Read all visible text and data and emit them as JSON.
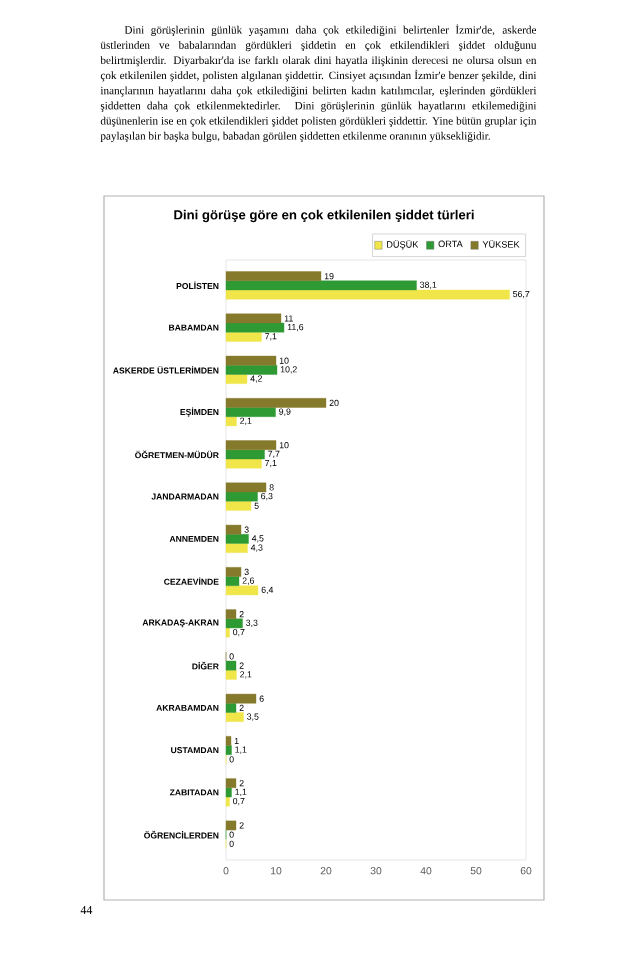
{
  "chart_data": {
    "type": "bar",
    "orientation": "horizontal",
    "title": "Dini görüşe göre en çok etkilenilen şiddet türleri",
    "categories": [
      "POLİSTEN",
      "BABAMDAN",
      "ASKERDE ÜSTLERİMDEN",
      "EŞİMDEN",
      "ÖĞRETMEN-MÜDÜR",
      "JANDARMADAN",
      "ANNEMDEN",
      "CEZAEVİNDE",
      "ARKADAŞ-AKRAN",
      "DİĞER",
      "AKRABAMDAN",
      "USTAMDAN",
      "ZABITADAN",
      "ÖĞRENCİLERDEN"
    ],
    "series": [
      {
        "name": "DÜŞÜK",
        "color": "#f0e64a",
        "values": [
          56.7,
          7.1,
          4.2,
          2.1,
          7.1,
          5,
          4.3,
          6.4,
          0.7,
          2.1,
          3.5,
          0,
          0.7,
          0
        ],
        "value_labels": [
          "56,7",
          "7,1",
          "4,2",
          "2,1",
          "7,1",
          "5",
          "4,3",
          "6,4",
          "0,7",
          "2,1",
          "3,5",
          "0",
          "0,7",
          "0"
        ]
      },
      {
        "name": "ORTA",
        "color": "#2e9a34",
        "values": [
          38.1,
          11.6,
          10.2,
          9.9,
          7.7,
          6.3,
          4.5,
          2.6,
          3.3,
          2,
          2,
          1.1,
          1.1,
          0
        ],
        "value_labels": [
          "38,1",
          "11,6",
          "10,2",
          "9,9",
          "7,7",
          "6,3",
          "4,5",
          "2,6",
          "3,3",
          "2",
          "2",
          "1,1",
          "1,1",
          "0"
        ]
      },
      {
        "name": "YÜKSEK",
        "color": "#857a2c",
        "values": [
          19,
          11,
          10,
          20,
          10,
          8,
          3,
          3,
          2,
          0,
          6,
          1,
          2,
          2
        ],
        "value_labels": [
          "19",
          "11",
          "10",
          "20",
          "10",
          "8",
          "3",
          "3",
          "2",
          "0",
          "6",
          "1",
          "2",
          "2"
        ]
      }
    ],
    "xlim": [
      0,
      60
    ],
    "xticks": [
      0,
      10,
      20,
      30,
      40,
      50,
      60
    ],
    "legend": "top right",
    "grid": false,
    "annotations": [
      "Dini görüşlerinin günlük yaşamını daha çok etkilediğini belirtenler İzmir'de, askerde üstlerinden ve babalarından gördükleri şiddetin en çok etkilendikleri şiddet olduğunu belirtmişlerdir. Diyarbakır'da ise farklı olarak dini hayatla ilişkinin derecesi ne olursa olsun en çok etkilenilen şiddet, polisten algılanan şiddettir. Cinsiyet açısından İzmir'e benzer şekilde, dini inançlarının hayatlarını daha çok etkilediğini belirten kadın katılımcılar, eşlerinden gördükleri şiddetten daha çok etkilenmektedirler. Dini görüşlerinin günlük hayatlarını etkilemediğini düşünenlerin ise en çok etkilendikleri şiddet polisten gördükleri şiddettir. Yine bütün gruplar için paylaşılan bir başka bulgu, babadan görülen şiddetten etkilenme oranının yüksekliğidir.",
      "44"
    ]
  }
}
